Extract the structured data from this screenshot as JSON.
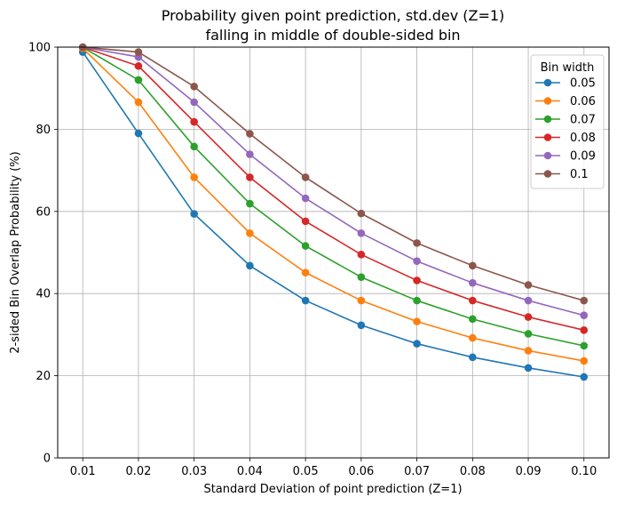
{
  "chart_data": {
    "type": "line",
    "title": "Probability given point prediction, std.dev (Z=1)",
    "subtitle": "falling in middle of double-sided bin",
    "xlabel": "Standard Deviation of point prediction (Z=1)",
    "ylabel": "2-sided Bin Overlap Probability (%)",
    "x": [
      0.01,
      0.02,
      0.03,
      0.04,
      0.05,
      0.06,
      0.07,
      0.08,
      0.09,
      0.1
    ],
    "x_tick_labels": [
      "0.01",
      "0.02",
      "0.03",
      "0.04",
      "0.05",
      "0.06",
      "0.07",
      "0.08",
      "0.09",
      "0.10"
    ],
    "y_ticks": [
      0,
      20,
      40,
      60,
      80,
      100
    ],
    "y_tick_labels": [
      "0",
      "20",
      "40",
      "60",
      "80",
      "100"
    ],
    "xlim": [
      0.0055,
      0.1045
    ],
    "ylim": [
      0,
      100
    ],
    "grid": true,
    "legend": {
      "title": "Bin width",
      "placement": "top-right"
    },
    "series": [
      {
        "name": "0.05",
        "color": "#1f77b4",
        "values": [
          98.8,
          79.0,
          59.4,
          46.8,
          38.3,
          32.3,
          27.8,
          24.5,
          21.9,
          19.7
        ]
      },
      {
        "name": "0.06",
        "color": "#ff7f0e",
        "values": [
          99.7,
          86.6,
          68.3,
          54.7,
          45.1,
          38.3,
          33.2,
          29.2,
          26.1,
          23.6
        ]
      },
      {
        "name": "0.07",
        "color": "#2ca02c",
        "values": [
          99.95,
          92.0,
          75.8,
          61.9,
          51.6,
          44.0,
          38.3,
          33.8,
          30.2,
          27.3
        ]
      },
      {
        "name": "0.08",
        "color": "#d62728",
        "values": [
          99.99,
          95.4,
          81.8,
          68.3,
          57.6,
          49.5,
          43.2,
          38.3,
          34.3,
          31.1
        ]
      },
      {
        "name": "0.09",
        "color": "#9467bd",
        "values": [
          100.0,
          97.6,
          86.6,
          73.9,
          63.2,
          54.7,
          47.9,
          42.6,
          38.3,
          34.7
        ]
      },
      {
        "name": "0.1",
        "color": "#8c564b",
        "values": [
          100.0,
          98.8,
          90.4,
          78.9,
          68.3,
          59.5,
          52.3,
          46.8,
          42.1,
          38.3
        ]
      }
    ]
  }
}
